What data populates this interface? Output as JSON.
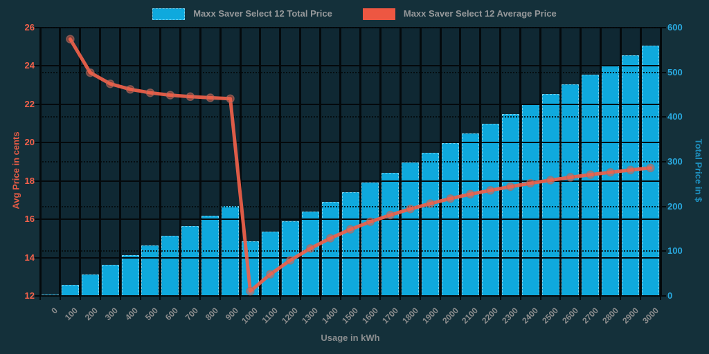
{
  "legend": {
    "items": [
      {
        "label": "Maxx Saver Select 12 Total Price",
        "color": "#0FA9DD"
      },
      {
        "label": "Maxx Saver Select 12 Average Price",
        "color": "#ED5742"
      }
    ]
  },
  "chart_data": {
    "type": "bar",
    "x": [
      0,
      100,
      200,
      300,
      400,
      500,
      600,
      700,
      800,
      900,
      1000,
      1100,
      1200,
      1300,
      1400,
      1500,
      1600,
      1700,
      1800,
      1900,
      2000,
      2100,
      2200,
      2300,
      2400,
      2500,
      2600,
      2700,
      2800,
      2900,
      3000
    ],
    "series": [
      {
        "name": "Maxx Saver Select 12 Total Price",
        "type": "bar",
        "axis": "right",
        "color": "#0FA9DD",
        "values": [
          3.5,
          25.4,
          47.3,
          69.2,
          91.1,
          113.0,
          134.9,
          156.8,
          178.7,
          200.6,
          122.5,
          144.4,
          166.3,
          188.2,
          210.1,
          232.0,
          253.9,
          275.8,
          297.7,
          319.6,
          341.5,
          363.4,
          385.3,
          407.2,
          429.1,
          451.0,
          472.9,
          494.8,
          516.7,
          538.6,
          560.5
        ]
      },
      {
        "name": "Maxx Saver Select 12 Average Price",
        "type": "line",
        "axis": "left",
        "color": "#F0614A",
        "values": [
          null,
          25.4,
          23.65,
          23.07,
          22.78,
          22.6,
          22.48,
          22.4,
          22.34,
          22.29,
          12.25,
          13.13,
          13.86,
          14.48,
          15.01,
          15.47,
          15.87,
          16.22,
          16.54,
          16.82,
          17.08,
          17.31,
          17.51,
          17.7,
          17.88,
          18.04,
          18.19,
          18.33,
          18.45,
          18.57,
          18.68
        ]
      }
    ],
    "xlabel": "Usage in kWh",
    "left_axis": {
      "label": "Avg Price in cents",
      "min": 12,
      "max": 26,
      "ticks": [
        12,
        14,
        16,
        18,
        20,
        22,
        24,
        26
      ],
      "color": "#F4614B"
    },
    "right_axis": {
      "label": "Total Price in $",
      "min": 0,
      "max": 600,
      "ticks": [
        0,
        100,
        200,
        300,
        400,
        500,
        600
      ],
      "color": "#29A9DF"
    },
    "grid": true,
    "legend_position": "top",
    "colors": {
      "background": "#14303A",
      "plot_background": "#0F2833",
      "grid": "#04090C",
      "bar": "#0FA9DD",
      "line": "#F0614A",
      "marker": "#A96A60",
      "x_label": "#8E8E8E",
      "legend_text": "#95989A"
    }
  }
}
